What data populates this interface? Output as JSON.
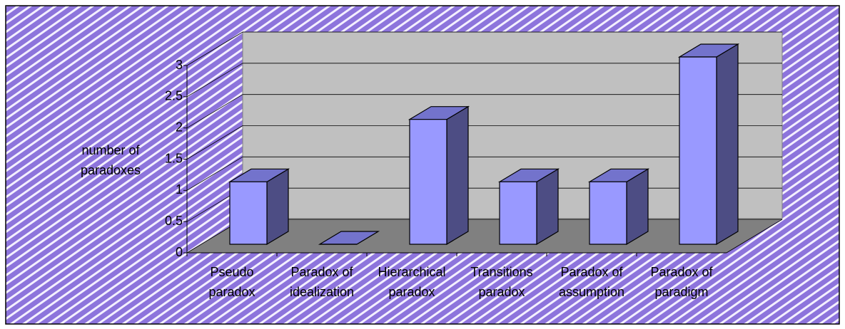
{
  "chart_data": {
    "type": "bar3d",
    "y_label": "number of paradoxes",
    "categories": [
      "Pseudo paradox",
      "Paradox of idealization",
      "Hierarchical paradox",
      "Transitions paradox",
      "Paradox of assumption",
      "Paradox of paradigm"
    ],
    "values": [
      1,
      0,
      2,
      1,
      1,
      3
    ],
    "color": "#9999ff",
    "ylim": [
      0,
      3
    ],
    "yticks": [
      0,
      0.5,
      1,
      1.5,
      2,
      2.5,
      3
    ],
    "grid": true
  }
}
